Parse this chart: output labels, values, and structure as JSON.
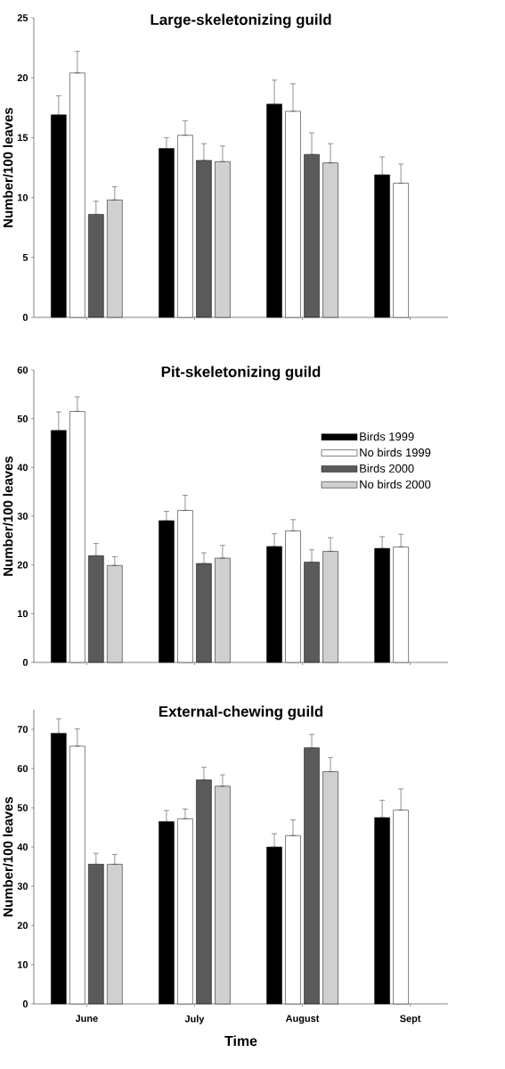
{
  "chart_data": [
    {
      "type": "bar",
      "title": "Large-skeletonizing guild",
      "ylabel": "Number/100 leaves",
      "categories": [
        null,
        null,
        null,
        null
      ],
      "ylim": [
        0,
        25
      ],
      "yticks": [
        0,
        5,
        10,
        15,
        20,
        25
      ],
      "tick_labels": "y",
      "legend": false,
      "series": [
        {
          "color": "#000000",
          "values": [
            16.9,
            14.1,
            17.8,
            11.9
          ],
          "errors": [
            [
              16.9,
              18.5
            ],
            [
              14.1,
              15.0
            ],
            [
              17.8,
              19.8
            ],
            [
              11.9,
              13.4
            ]
          ]
        },
        {
          "color": "#ffffff",
          "values": [
            20.4,
            15.2,
            17.2,
            11.2
          ],
          "errors": [
            [
              20.4,
              22.2
            ],
            [
              15.2,
              16.4
            ],
            [
              17.2,
              19.5
            ],
            [
              11.2,
              12.8
            ]
          ]
        },
        {
          "color": "#5a5a5a",
          "values": [
            8.6,
            13.1,
            13.6,
            null
          ],
          "errors": [
            [
              8.6,
              9.7
            ],
            [
              13.1,
              14.5
            ],
            [
              13.6,
              15.4
            ],
            null
          ]
        },
        {
          "color": "#d0d0d0",
          "values": [
            9.8,
            13.0,
            12.9,
            null
          ],
          "errors": [
            [
              9.8,
              10.9
            ],
            [
              13.0,
              14.3
            ],
            [
              12.9,
              14.5
            ],
            null
          ]
        }
      ]
    },
    {
      "type": "bar",
      "title": "Pit-skeletonizing guild",
      "ylabel": "Number/100 leaves",
      "categories": [
        null,
        null,
        null,
        null
      ],
      "ylim": [
        0,
        60
      ],
      "yticks": [
        0,
        10,
        20,
        30,
        40,
        50,
        60
      ],
      "tick_labels": "y",
      "legend": "top right",
      "series": [
        {
          "name": "Birds 1999",
          "color": "#000000",
          "values": [
            47.6,
            29.1,
            23.8,
            23.4
          ],
          "errors": [
            [
              47.6,
              51.4
            ],
            [
              29.1,
              31.0
            ],
            [
              23.8,
              26.4
            ],
            [
              23.4,
              25.8
            ]
          ]
        },
        {
          "name": "No birds 1999",
          "color": "#ffffff",
          "values": [
            51.5,
            31.2,
            27.0,
            23.7
          ],
          "errors": [
            [
              51.5,
              54.5
            ],
            [
              31.2,
              34.3
            ],
            [
              27.0,
              29.3
            ],
            [
              23.7,
              26.3
            ]
          ]
        },
        {
          "name": "Birds 2000",
          "color": "#5a5a5a",
          "values": [
            21.9,
            20.3,
            20.6,
            null
          ],
          "errors": [
            [
              21.9,
              24.4
            ],
            [
              20.3,
              22.5
            ],
            [
              20.6,
              23.1
            ],
            null
          ]
        },
        {
          "name": "No birds 2000",
          "color": "#d0d0d0",
          "values": [
            19.9,
            21.4,
            22.8,
            null
          ],
          "errors": [
            [
              19.9,
              21.7
            ],
            [
              21.4,
              24.0
            ],
            [
              22.8,
              25.6
            ],
            null
          ]
        }
      ]
    },
    {
      "type": "bar",
      "title": "External-chewing guild",
      "xlabel": "Time",
      "ylabel": "Number/100 leaves",
      "categories": [
        "June",
        "July",
        "August",
        "Sept"
      ],
      "ylim": [
        0,
        75
      ],
      "yticks": [
        0,
        10,
        20,
        30,
        40,
        50,
        60,
        70
      ],
      "legend": false,
      "series": [
        {
          "color": "#000000",
          "values": [
            69.0,
            46.5,
            40.0,
            47.5
          ],
          "errors": [
            [
              69.0,
              72.7
            ],
            [
              46.5,
              49.3
            ],
            [
              40.0,
              43.4
            ],
            [
              47.5,
              51.9
            ]
          ]
        },
        {
          "color": "#ffffff",
          "values": [
            65.7,
            47.2,
            42.9,
            49.4
          ],
          "errors": [
            [
              65.7,
              70.1
            ],
            [
              47.2,
              49.7
            ],
            [
              42.9,
              46.9
            ],
            [
              49.4,
              54.8
            ]
          ]
        },
        {
          "color": "#5a5a5a",
          "values": [
            35.6,
            57.1,
            65.3,
            null
          ],
          "errors": [
            [
              35.6,
              38.4
            ],
            [
              57.1,
              60.3
            ],
            [
              65.3,
              68.7
            ],
            null
          ]
        },
        {
          "color": "#d0d0d0",
          "values": [
            35.6,
            55.5,
            59.2,
            null
          ],
          "errors": [
            [
              35.6,
              38.1
            ],
            [
              55.5,
              58.4
            ],
            [
              59.2,
              62.8
            ],
            null
          ]
        }
      ]
    }
  ]
}
